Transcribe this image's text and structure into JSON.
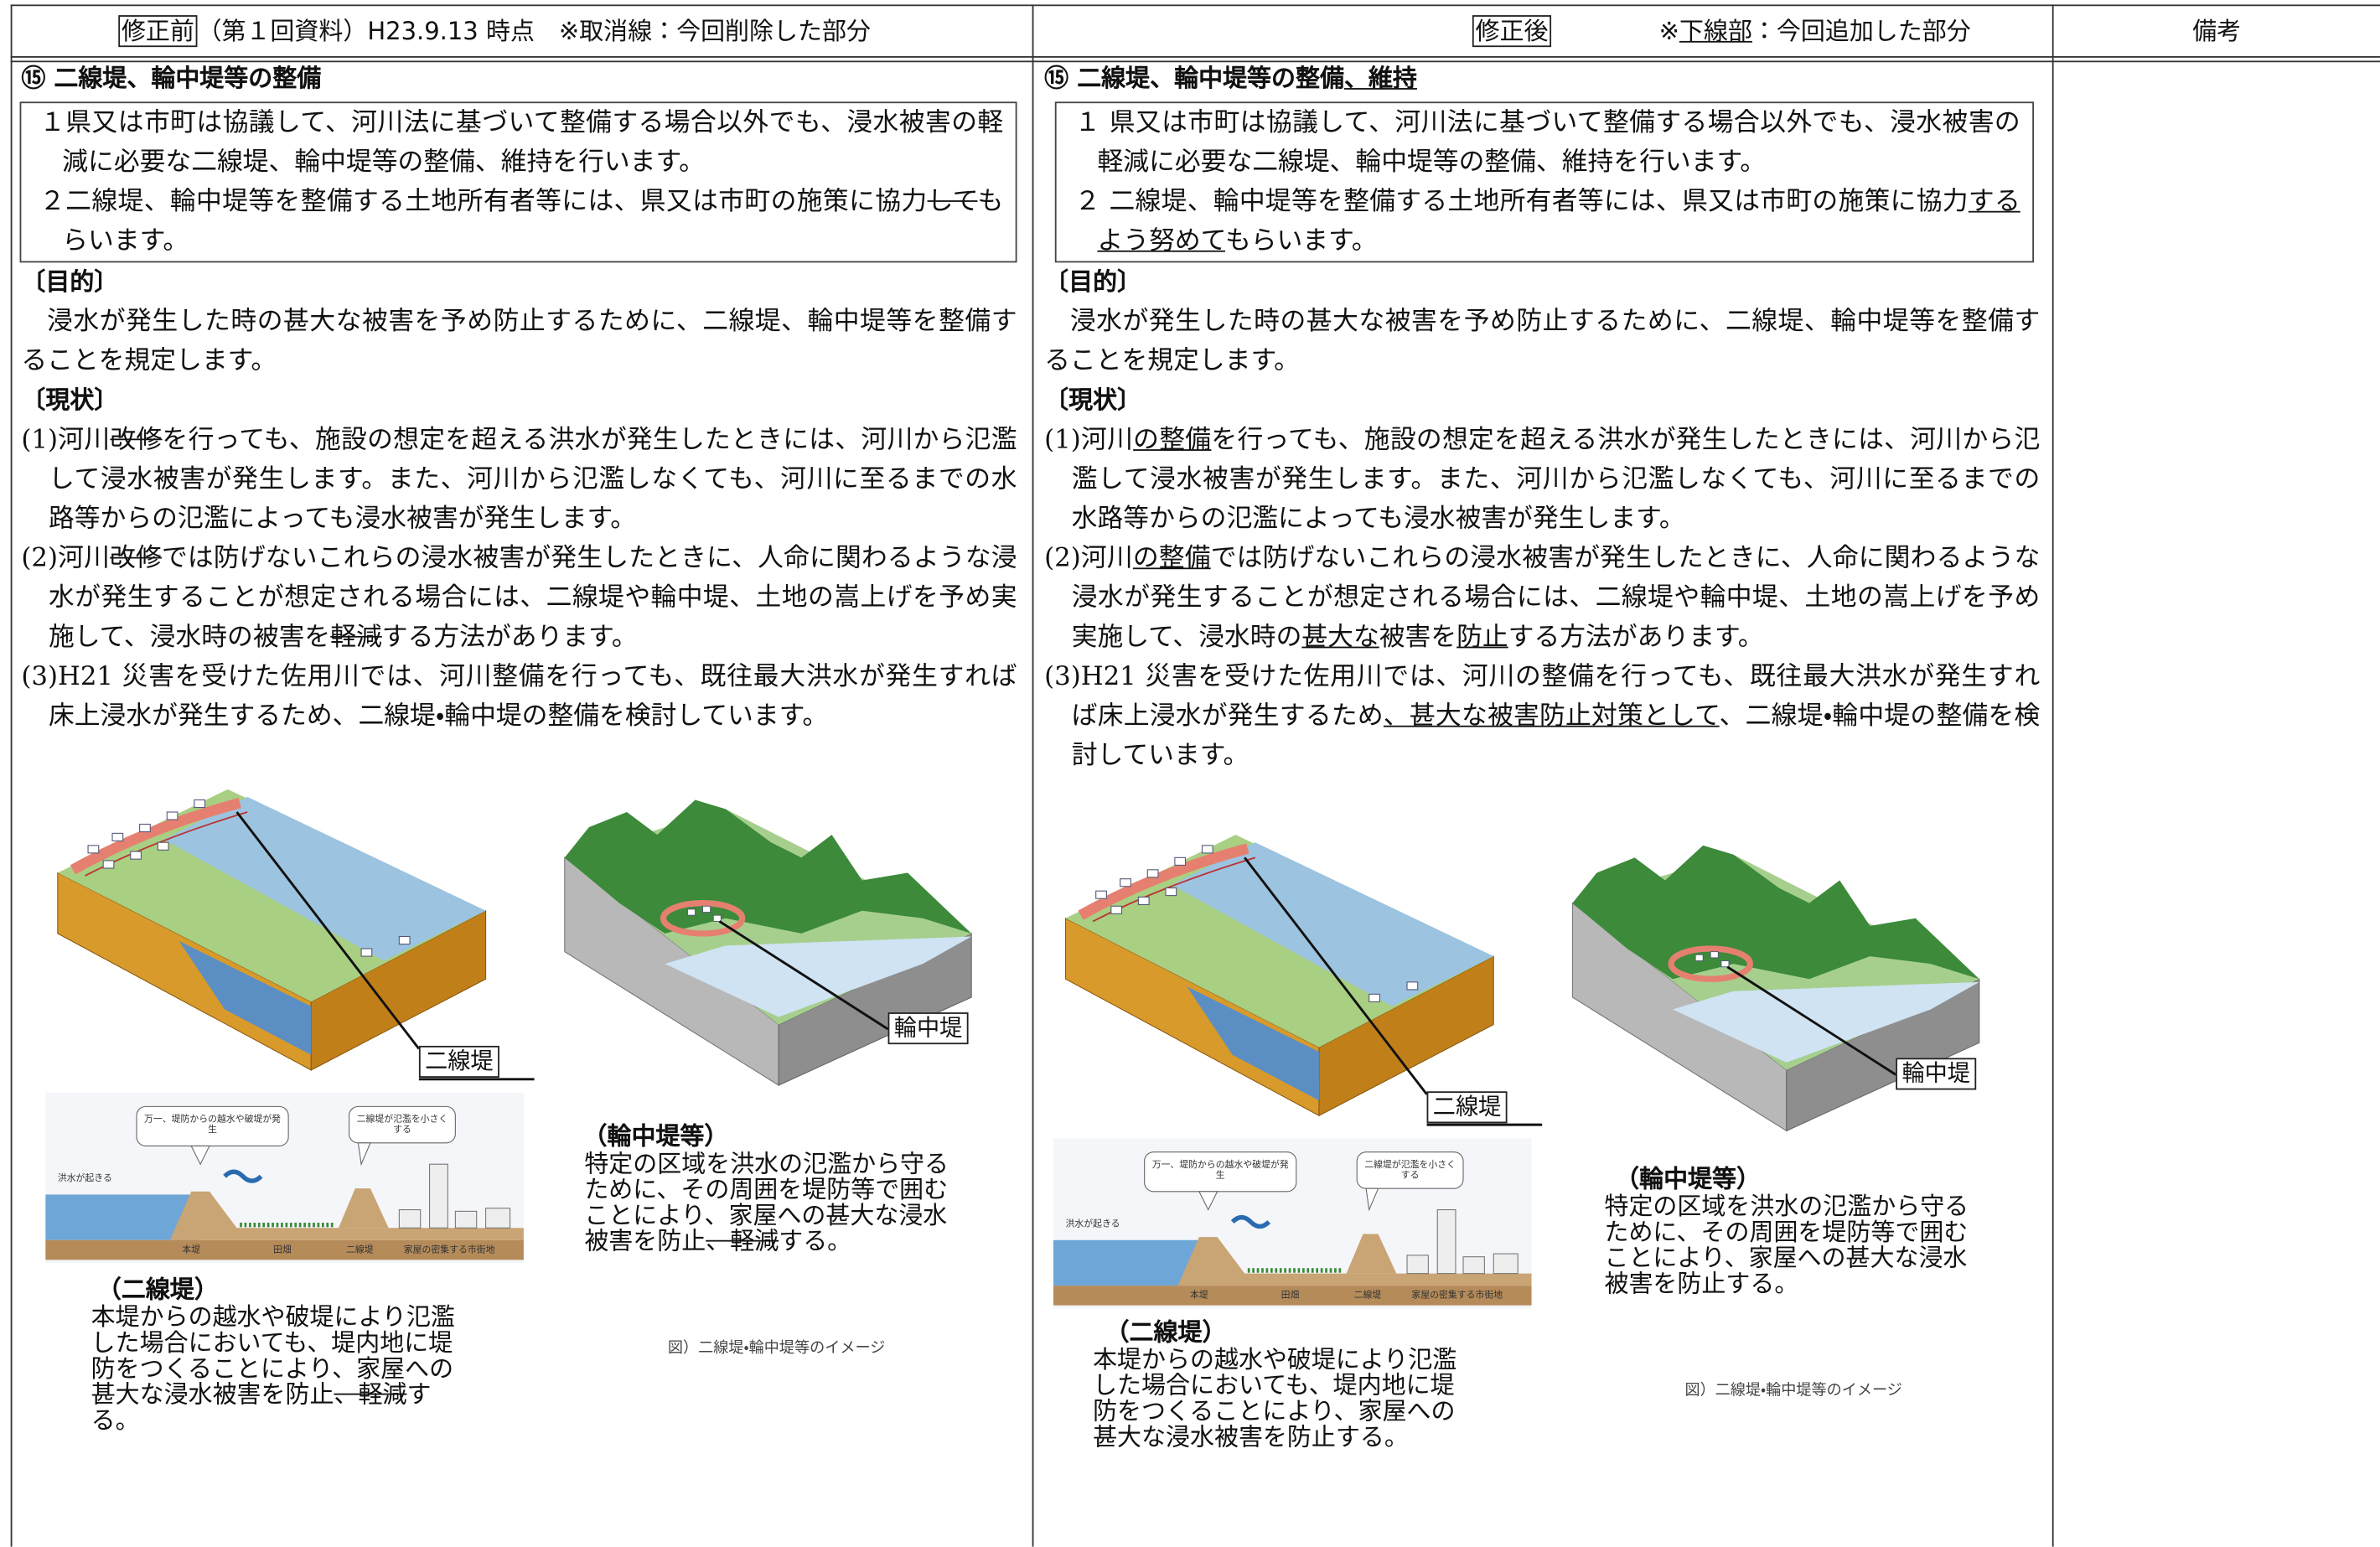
{
  "header": {
    "before_label": "修正前",
    "before_note": "（第１回資料）H23.9.13 時点　※取消線：今回削除した部分",
    "after_label": "修正後",
    "after_note": [
      "※",
      "下線部",
      "：今回追加した部分"
    ],
    "remarks": "備考"
  },
  "before": {
    "heading": [
      "⑮ 二線堤、輪中堤等の整備"
    ],
    "box": [
      [
        "１県又は市町は協議して、河川法に基づいて整備する場合以外でも、浸水被害の軽減に必要な二線堤、輪中堤等の整備、維持を行います。"
      ],
      [
        "２二線堤、輪中堤等を整備する土地所有者等には、県又は市町の施策に協力",
        "して",
        "もらいます。"
      ]
    ],
    "purpose": {
      "heading": "〔目的〕",
      "text": "浸水が発生した時の甚大な被害を予め防止するために、二線堤、輪中堤等を整備することを規定します。"
    },
    "current": {
      "heading": "〔現状〕",
      "items": [
        [
          "(1)河川",
          "改修",
          "を行っても、施設の想定を超える洪水が発生したときには、河川から氾濫して浸水被害が発生します。また、河川から氾濫しなくても、河川に至るまでの水路等からの氾濫によっても浸水被害が発生します。"
        ],
        [
          "(2)河川",
          "改修",
          "では防げないこれらの浸水被害が発生したときに、人命に関わるような浸水が発生することが想定される場合には、二線堤や輪中堤、土地の嵩上げを予め実施して、浸水時の被害を",
          "軽減",
          "する方法があります。"
        ],
        [
          "(3)H21 災害を受けた佐用川では、河川整備を行っても、既往最大洪水が発生すれば床上浸水が発生するため、二線堤・輪中堤の整備を検討しています。"
        ]
      ]
    },
    "figure": {
      "label_nisen": "二線堤",
      "label_wajuu": "輪中堤",
      "section": {
        "bubble_1": "万一、堤防からの越水や破堤が発生",
        "bubble_2": "二線堤が氾濫を小さくする",
        "flood": "洪水が起きる",
        "levee": "本堤",
        "field": "田畑",
        "second_levee": "二線堤",
        "town": "家屋の密集する市街地"
      },
      "nisen": {
        "title": "（二線堤）",
        "text": [
          "本堤からの越水や破堤により氾濫した場合においても、堤内地に堤防をつくることにより、家屋への甚大な浸水被害を防止",
          "、軽減",
          "する。"
        ]
      },
      "wajuu": {
        "title": "（輪中堤等）",
        "text": [
          "特定の区域を洪水の氾濫から守るために、その周囲を堤防等で囲むことにより、家屋への甚大な浸水被害を防止",
          "、軽減",
          "する。"
        ]
      },
      "caption": "図）二線堤・輪中堤等のイメージ"
    }
  },
  "after": {
    "heading": [
      "⑮ 二線堤、輪中堤等の整備",
      "、維持"
    ],
    "box": [
      [
        "１ 県又は市町は協議して、河川法に基づいて整備する場合以外でも、浸水被害の軽減に必要な二線堤、輪中堤等の整備、維持を行います。"
      ],
      [
        "２ 二線堤、輪中堤等を整備する土地所有者等には、県又は市町の施策に協力",
        "するよう努めて",
        "もらいます。"
      ]
    ],
    "purpose": {
      "heading": "〔目的〕",
      "text": "浸水が発生した時の甚大な被害を予め防止するために、二線堤、輪中堤等を整備することを規定します。"
    },
    "current": {
      "heading": "〔現状〕",
      "items": [
        [
          "(1)河川",
          "の整備",
          "を行っても、施設の想定を超える洪水が発生したときには、河川から氾濫して浸水被害が発生します。また、河川から氾濫しなくても、河川に至るまでの水路等からの氾濫によっても浸水被害が発生します。"
        ],
        [
          "(2)河川",
          "の整備",
          "では防げないこれらの浸水被害が発生したときに、人命に関わるような浸水が発生することが想定される場合には、二線堤や輪中堤、土地の嵩上げを予め実施して、浸水時の",
          "甚大な",
          "被害を",
          "防止",
          "する方法があります。"
        ],
        [
          "(3)H21 災害を受けた佐用川では、河川の整備を行っても、既往最大洪水が発生すれば床上浸水が発生するため",
          "、甚大な被害防止対策として",
          "、二線堤・輪中堤の整備を検討しています。"
        ]
      ]
    },
    "figure": {
      "label_nisen": "二線堤",
      "label_wajuu": "輪中堤",
      "section": {
        "bubble_1": "万一、堤防からの越水や破堤が発生",
        "bubble_2": "二線堤が氾濫を小さくする",
        "flood": "洪水が起きる",
        "levee": "本堤",
        "field": "田畑",
        "second_levee": "二線堤",
        "town": "家屋の密集する市街地"
      },
      "nisen": {
        "title": "（二線堤）",
        "text": [
          "本堤からの越水や破堤により氾濫した場合においても、堤内地に堤防をつくることにより、家屋への甚大な浸水被害を防止する。"
        ]
      },
      "wajuu": {
        "title": "（輪中堤等）",
        "text": [
          "特定の区域を洪水の氾濫から守るために、その周囲を堤防等で囲むことにより、家屋への甚大な浸水被害を防止する。"
        ]
      },
      "caption": "図）二線堤・輪中堤等のイメージ"
    }
  }
}
